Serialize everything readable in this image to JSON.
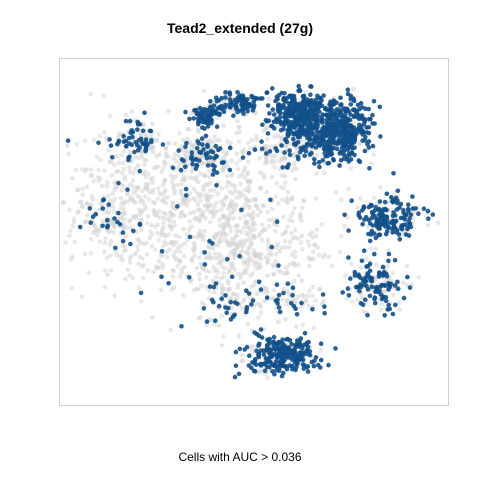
{
  "chart_data": {
    "type": "scatter",
    "title": "Tead2_extended (27g)",
    "caption": "Cells with AUC > 0.036",
    "xlabel": "",
    "ylabel": "",
    "grid": false,
    "colors": {
      "low": "#d3d3d3",
      "high": "#12508a"
    },
    "series": [
      {
        "clusters": [
          {
            "cx": -38,
            "cy": 15,
            "sx": 34,
            "sy": 22,
            "n": 900,
            "p_high": 0.03
          },
          {
            "cx": -5,
            "cy": -12,
            "sx": 22,
            "sy": 14,
            "n": 300,
            "p_high": 0.04
          },
          {
            "cx": 18,
            "cy": 46,
            "sx": 12,
            "sy": 6,
            "n": 160,
            "p_high": 0.25
          },
          {
            "cx": 24,
            "cy": 63,
            "sx": 8,
            "sy": 7,
            "n": 380,
            "p_high": 0.92
          },
          {
            "cx": 44,
            "cy": 55,
            "sx": 8,
            "sy": 8,
            "n": 380,
            "p_high": 0.92
          },
          {
            "cx": -7,
            "cy": 70,
            "sx": 6,
            "sy": 3,
            "n": 130,
            "p_high": 0.55
          },
          {
            "cx": -24,
            "cy": 64,
            "sx": 4,
            "sy": 3,
            "n": 70,
            "p_high": 0.85
          },
          {
            "cx": -61,
            "cy": 50,
            "sx": 6,
            "sy": 5,
            "n": 90,
            "p_high": 0.55
          },
          {
            "cx": -27,
            "cy": 42,
            "sx": 8,
            "sy": 5,
            "n": 130,
            "p_high": 0.35
          },
          {
            "cx": 68,
            "cy": 8,
            "sx": 9,
            "sy": 6,
            "n": 200,
            "p_high": 0.65
          },
          {
            "cx": 64,
            "cy": -28,
            "sx": 8,
            "sy": 7,
            "n": 170,
            "p_high": 0.6
          },
          {
            "cx": 15,
            "cy": -67,
            "sx": 9,
            "sy": 5,
            "n": 300,
            "p_high": 0.8
          },
          {
            "cx": -76,
            "cy": 6,
            "sx": 6,
            "sy": 5,
            "n": 50,
            "p_high": 0.4
          },
          {
            "cx": -10,
            "cy": -40,
            "sx": 10,
            "sy": 8,
            "n": 90,
            "p_high": 0.3
          },
          {
            "cx": 22,
            "cy": -38,
            "sx": 7,
            "sy": 6,
            "n": 50,
            "p_high": 0.35
          }
        ]
      }
    ],
    "xlim": [
      -100,
      100
    ],
    "ylim": [
      -95,
      95
    ]
  }
}
